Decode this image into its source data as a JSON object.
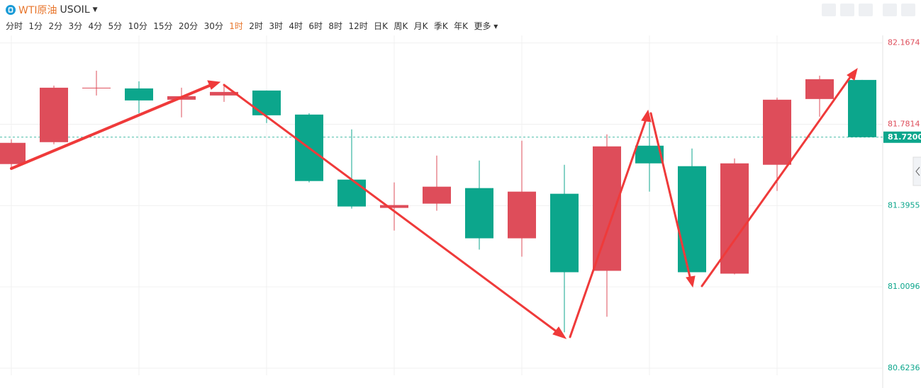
{
  "header": {
    "symbol_name": "WTI原油",
    "symbol_code": "USOIL",
    "periods": [
      "分时",
      "1分",
      "2分",
      "3分",
      "4分",
      "5分",
      "10分",
      "15分",
      "20分",
      "30分",
      "1时",
      "2时",
      "3时",
      "4时",
      "6时",
      "8时",
      "12时",
      "日K",
      "周K",
      "月K",
      "季K",
      "年K",
      "更多"
    ],
    "active_period": 10
  },
  "chart_data": {
    "type": "candlestick",
    "open": [
      81.5925,
      81.6965,
      81.9549,
      81.9515,
      81.8979,
      81.918,
      81.9415,
      81.8274,
      81.5187,
      81.3844,
      81.4046,
      81.4784,
      81.2401,
      81.4515,
      81.0858,
      81.6797,
      81.5824,
      81.0723,
      81.5891,
      81.9012,
      81.9918
    ],
    "high": [
      81.7099,
      81.965,
      82.0354,
      81.9851,
      81.9549,
      81.9616,
      81.9415,
      81.8341,
      81.7569,
      81.5052,
      81.6328,
      81.6093,
      81.7032,
      81.5891,
      81.7334,
      81.7905,
      81.6663,
      81.6193,
      81.9079,
      82.0119,
      81.9918
    ],
    "low": [
      81.5656,
      81.6864,
      81.918,
      81.8341,
      81.814,
      81.8878,
      81.7871,
      81.5052,
      81.3811,
      81.277,
      81.371,
      81.1864,
      81.1529,
      80.7938,
      80.8677,
      81.4616,
      81.0791,
      81.069,
      81.465,
      81.8173,
      81.72
    ],
    "close": [
      81.6932,
      81.9549,
      81.9549,
      81.8945,
      81.9146,
      81.9348,
      81.824,
      81.5119,
      81.3911,
      81.3979,
      81.4851,
      81.2401,
      81.4616,
      81.0791,
      81.6764,
      81.5958,
      81.0791,
      81.5958,
      81.8979,
      81.9952,
      81.72
    ],
    "up_color": "#de4d5a",
    "down_color": "#0ca68c",
    "ylim": [
      80.59,
      82.22
    ],
    "yticks": [
      80.6236,
      81.0096,
      81.3955,
      81.7814,
      82.1674
    ],
    "last_price": {
      "value": 81.72,
      "label": "81.7200"
    },
    "grid": true
  }
}
